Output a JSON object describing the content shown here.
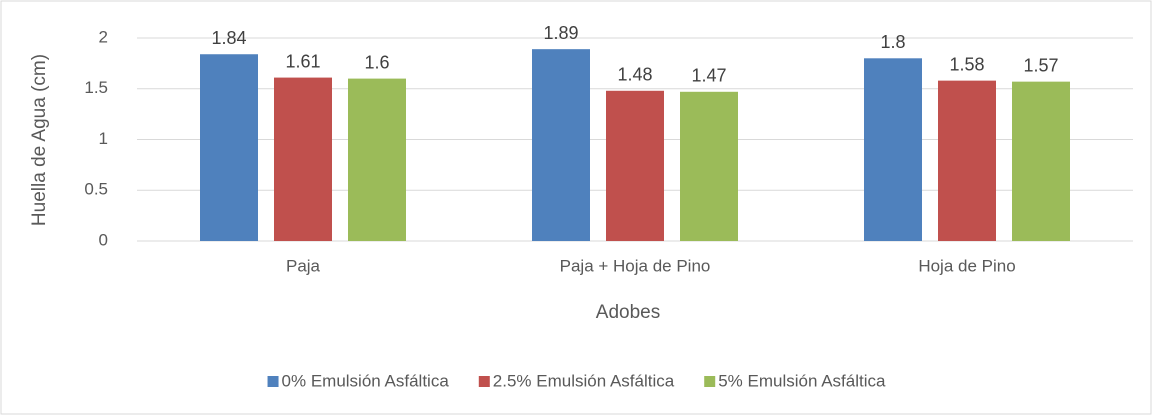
{
  "chart_data": {
    "type": "bar",
    "categories": [
      "Paja",
      "Paja + Hoja de Pino",
      "Hoja de Pino"
    ],
    "series": [
      {
        "name": "0% Emulsión Asfáltica",
        "color": "#4f81bd",
        "values": [
          1.84,
          1.89,
          1.8
        ]
      },
      {
        "name": "2.5% Emulsión Asfáltica",
        "color": "#c0504d",
        "values": [
          1.61,
          1.48,
          1.58
        ]
      },
      {
        "name": "5% Emulsión Asfáltica",
        "color": "#9bbb59",
        "values": [
          1.6,
          1.47,
          1.57
        ]
      }
    ],
    "xlabel": "Adobes",
    "ylabel": "Huella de Agua (cm)",
    "ylim": [
      0,
      2
    ],
    "yticks": [
      0,
      0.5,
      1,
      1.5,
      2
    ],
    "grid": true,
    "legend": "bottom"
  }
}
